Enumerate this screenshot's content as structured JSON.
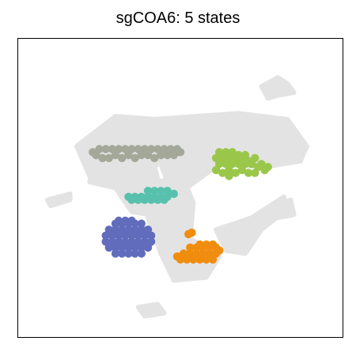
{
  "chart_data": {
    "type": "scatter",
    "title": "sgCOA6: 5 states",
    "xlabel": "",
    "ylabel": "",
    "axes_ticks": false,
    "grid": false,
    "legend": "none",
    "background_color": "#e3e3e3",
    "background_regions": [
      {
        "name": "upper-center-mass",
        "polygon": [
          [
            0.18,
            0.64
          ],
          [
            0.3,
            0.74
          ],
          [
            0.42,
            0.73
          ],
          [
            0.55,
            0.74
          ],
          [
            0.68,
            0.75
          ],
          [
            0.83,
            0.73
          ],
          [
            0.89,
            0.64
          ],
          [
            0.87,
            0.59
          ],
          [
            0.76,
            0.57
          ],
          [
            0.62,
            0.58
          ],
          [
            0.52,
            0.5
          ],
          [
            0.46,
            0.52
          ],
          [
            0.44,
            0.58
          ],
          [
            0.34,
            0.56
          ],
          [
            0.22,
            0.54
          ]
        ]
      },
      {
        "name": "left-arm",
        "polygon": [
          [
            0.25,
            0.66
          ],
          [
            0.4,
            0.67
          ],
          [
            0.43,
            0.53
          ],
          [
            0.47,
            0.46
          ],
          [
            0.46,
            0.4
          ],
          [
            0.35,
            0.42
          ],
          [
            0.3,
            0.5
          ],
          [
            0.22,
            0.52
          ],
          [
            0.24,
            0.6
          ]
        ]
      },
      {
        "name": "central-stem",
        "polygon": [
          [
            0.41,
            0.52
          ],
          [
            0.51,
            0.53
          ],
          [
            0.54,
            0.45
          ],
          [
            0.53,
            0.33
          ],
          [
            0.62,
            0.27
          ],
          [
            0.58,
            0.2
          ],
          [
            0.48,
            0.19
          ],
          [
            0.44,
            0.28
          ],
          [
            0.4,
            0.4
          ]
        ]
      },
      {
        "name": "right-tail",
        "polygon": [
          [
            0.61,
            0.36
          ],
          [
            0.72,
            0.4
          ],
          [
            0.79,
            0.45
          ],
          [
            0.82,
            0.47
          ],
          [
            0.82,
            0.42
          ],
          [
            0.75,
            0.36
          ],
          [
            0.7,
            0.28
          ],
          [
            0.64,
            0.29
          ]
        ]
      },
      {
        "name": "top-right-ring",
        "polygon": [
          [
            0.75,
            0.84
          ],
          [
            0.8,
            0.87
          ],
          [
            0.83,
            0.85
          ],
          [
            0.85,
            0.82
          ],
          [
            0.8,
            0.81
          ],
          [
            0.77,
            0.8
          ]
        ]
      },
      {
        "name": "far-left-strand",
        "polygon": [
          [
            0.09,
            0.46
          ],
          [
            0.16,
            0.48
          ],
          [
            0.16,
            0.46
          ],
          [
            0.1,
            0.44
          ]
        ]
      },
      {
        "name": "bottom-island",
        "polygon": [
          [
            0.37,
            0.1
          ],
          [
            0.43,
            0.11
          ],
          [
            0.45,
            0.08
          ],
          [
            0.39,
            0.07
          ]
        ]
      },
      {
        "name": "right-notch",
        "polygon": [
          [
            0.78,
            0.43
          ],
          [
            0.84,
            0.46
          ],
          [
            0.85,
            0.41
          ],
          [
            0.8,
            0.4
          ]
        ]
      }
    ],
    "series": [
      {
        "color": "#a3a899",
        "points": [
          [
            0.24,
            0.61
          ],
          [
            0.26,
            0.6
          ],
          [
            0.28,
            0.6
          ],
          [
            0.3,
            0.61
          ],
          [
            0.32,
            0.6
          ],
          [
            0.34,
            0.61
          ],
          [
            0.36,
            0.6
          ],
          [
            0.38,
            0.61
          ],
          [
            0.4,
            0.61
          ],
          [
            0.42,
            0.6
          ],
          [
            0.44,
            0.61
          ],
          [
            0.46,
            0.61
          ],
          [
            0.48,
            0.61
          ],
          [
            0.25,
            0.63
          ],
          [
            0.27,
            0.63
          ],
          [
            0.29,
            0.63
          ],
          [
            0.31,
            0.63
          ],
          [
            0.33,
            0.63
          ],
          [
            0.35,
            0.63
          ],
          [
            0.37,
            0.63
          ],
          [
            0.39,
            0.63
          ],
          [
            0.41,
            0.63
          ],
          [
            0.43,
            0.63
          ],
          [
            0.45,
            0.63
          ],
          [
            0.47,
            0.63
          ],
          [
            0.49,
            0.63
          ],
          [
            0.23,
            0.62
          ],
          [
            0.5,
            0.62
          ]
        ]
      },
      {
        "color": "#9ac74a",
        "points": [
          [
            0.61,
            0.56
          ],
          [
            0.63,
            0.55
          ],
          [
            0.65,
            0.56
          ],
          [
            0.67,
            0.55
          ],
          [
            0.69,
            0.56
          ],
          [
            0.71,
            0.55
          ],
          [
            0.73,
            0.55
          ],
          [
            0.62,
            0.58
          ],
          [
            0.64,
            0.58
          ],
          [
            0.66,
            0.58
          ],
          [
            0.68,
            0.58
          ],
          [
            0.7,
            0.58
          ],
          [
            0.72,
            0.58
          ],
          [
            0.74,
            0.57
          ],
          [
            0.61,
            0.6
          ],
          [
            0.63,
            0.6
          ],
          [
            0.65,
            0.6
          ],
          [
            0.67,
            0.6
          ],
          [
            0.69,
            0.6
          ],
          [
            0.71,
            0.59
          ],
          [
            0.73,
            0.6
          ],
          [
            0.62,
            0.62
          ],
          [
            0.64,
            0.62
          ],
          [
            0.66,
            0.62
          ],
          [
            0.68,
            0.61
          ],
          [
            0.7,
            0.61
          ],
          [
            0.65,
            0.54
          ],
          [
            0.76,
            0.56
          ],
          [
            0.77,
            0.57
          ],
          [
            0.75,
            0.58
          ]
        ]
      },
      {
        "color": "#57c1ad",
        "points": [
          [
            0.34,
            0.47
          ],
          [
            0.36,
            0.47
          ],
          [
            0.38,
            0.47
          ],
          [
            0.4,
            0.47
          ],
          [
            0.42,
            0.47
          ],
          [
            0.44,
            0.47
          ],
          [
            0.46,
            0.47
          ],
          [
            0.48,
            0.48
          ],
          [
            0.4,
            0.49
          ],
          [
            0.42,
            0.49
          ],
          [
            0.44,
            0.49
          ],
          [
            0.46,
            0.49
          ],
          [
            0.35,
            0.46
          ],
          [
            0.37,
            0.46
          ],
          [
            0.39,
            0.46
          ],
          [
            0.41,
            0.46
          ],
          [
            0.43,
            0.46
          ],
          [
            0.45,
            0.46
          ]
        ]
      },
      {
        "color": "#626cbd",
        "points": [
          [
            0.27,
            0.34
          ],
          [
            0.29,
            0.34
          ],
          [
            0.31,
            0.34
          ],
          [
            0.33,
            0.34
          ],
          [
            0.35,
            0.34
          ],
          [
            0.37,
            0.34
          ],
          [
            0.39,
            0.34
          ],
          [
            0.41,
            0.34
          ],
          [
            0.28,
            0.36
          ],
          [
            0.3,
            0.36
          ],
          [
            0.32,
            0.36
          ],
          [
            0.34,
            0.36
          ],
          [
            0.36,
            0.36
          ],
          [
            0.38,
            0.36
          ],
          [
            0.4,
            0.36
          ],
          [
            0.27,
            0.32
          ],
          [
            0.29,
            0.32
          ],
          [
            0.31,
            0.32
          ],
          [
            0.33,
            0.32
          ],
          [
            0.35,
            0.32
          ],
          [
            0.37,
            0.32
          ],
          [
            0.39,
            0.32
          ],
          [
            0.41,
            0.32
          ],
          [
            0.28,
            0.3
          ],
          [
            0.3,
            0.3
          ],
          [
            0.32,
            0.3
          ],
          [
            0.34,
            0.3
          ],
          [
            0.36,
            0.3
          ],
          [
            0.38,
            0.3
          ],
          [
            0.4,
            0.3
          ],
          [
            0.3,
            0.38
          ],
          [
            0.32,
            0.38
          ],
          [
            0.34,
            0.38
          ],
          [
            0.36,
            0.38
          ],
          [
            0.38,
            0.38
          ],
          [
            0.31,
            0.39
          ],
          [
            0.33,
            0.39
          ],
          [
            0.35,
            0.39
          ],
          [
            0.3,
            0.28
          ],
          [
            0.32,
            0.28
          ],
          [
            0.34,
            0.28
          ],
          [
            0.36,
            0.28
          ],
          [
            0.38,
            0.28
          ]
        ]
      },
      {
        "color": "#f08d0e",
        "points": [
          [
            0.5,
            0.26
          ],
          [
            0.52,
            0.26
          ],
          [
            0.54,
            0.26
          ],
          [
            0.56,
            0.26
          ],
          [
            0.58,
            0.26
          ],
          [
            0.6,
            0.26
          ],
          [
            0.51,
            0.28
          ],
          [
            0.53,
            0.28
          ],
          [
            0.55,
            0.28
          ],
          [
            0.57,
            0.28
          ],
          [
            0.59,
            0.28
          ],
          [
            0.61,
            0.28
          ],
          [
            0.53,
            0.3
          ],
          [
            0.55,
            0.3
          ],
          [
            0.57,
            0.3
          ],
          [
            0.59,
            0.3
          ],
          [
            0.61,
            0.3
          ],
          [
            0.56,
            0.31
          ],
          [
            0.58,
            0.31
          ],
          [
            0.6,
            0.31
          ],
          [
            0.49,
            0.27
          ],
          [
            0.62,
            0.29
          ],
          [
            0.525,
            0.345
          ],
          [
            0.535,
            0.35
          ]
        ]
      }
    ]
  }
}
